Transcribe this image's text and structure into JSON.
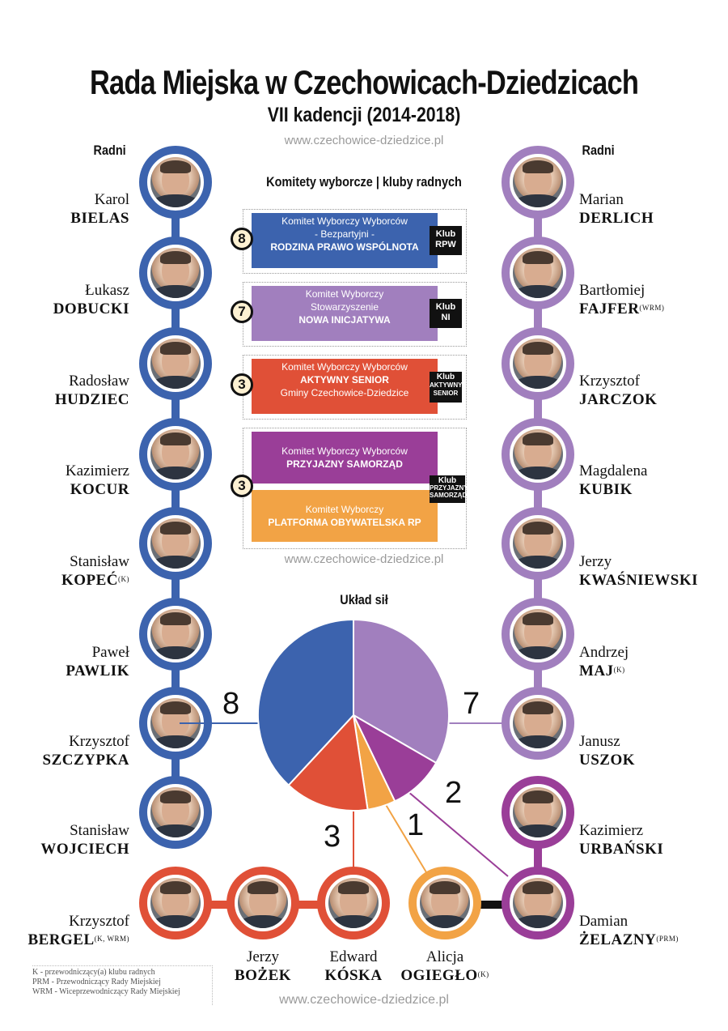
{
  "title": "Rada Miejska w Czechowicach-Dziedzicach",
  "subtitle": "VII kadencji (2014-2018)",
  "website": "www.czechowice-dziedzice.pl",
  "radni_label": "Radni",
  "committees_header": "Komitety wyborcze | kluby radnych",
  "uklad_header": "Układ sił",
  "committees": [
    {
      "count": "8",
      "line1": "Komitet Wyborczy Wyborców",
      "line2": "- Bezpartyjni -",
      "line3": "RODZINA PRAWO WSPÓLNOTA",
      "klub_line1": "Klub",
      "klub_line2": "RPW",
      "color": "#3c63ae"
    },
    {
      "count": "7",
      "line1": "Komitet Wyborczy",
      "line2": "Stowarzyszenie",
      "line3": "NOWA INICJATYWA",
      "klub_line1": "Klub",
      "klub_line2": "NI",
      "color": "#a17fbe"
    },
    {
      "count": "3",
      "line1": "Komitet Wyborczy Wyborców",
      "line2": "AKTYWNY SENIOR",
      "line3": "Gminy Czechowice-Dziedzice",
      "klub_line1": "Klub",
      "klub_line2": "AKTYWNY",
      "klub_line3": "SENIOR",
      "color": "#e05037"
    },
    {
      "count": "3",
      "line1": "Komitet Wyborczy Wyborców",
      "line2": "PRZYJAZNY SAMORZĄD",
      "line3": "Komitet Wyborczy",
      "line4": "PLATFORMA OBYWATELSKA RP",
      "klub_line1": "Klub",
      "klub_line2": "PRZYJAZNY",
      "klub_line3": "SAMORZĄD",
      "color": "#9a3e98",
      "color2": "#f2a345"
    }
  ],
  "left_members": [
    {
      "first": "Karol",
      "last": "BIELAS",
      "sup": ""
    },
    {
      "first": "Łukasz",
      "last": "DOBUCKI",
      "sup": ""
    },
    {
      "first": "Radosław",
      "last": "HUDZIEC",
      "sup": ""
    },
    {
      "first": "Kazimierz",
      "last": "KOCUR",
      "sup": ""
    },
    {
      "first": "Stanisław",
      "last": "KOPEĆ",
      "sup": "(K)"
    },
    {
      "first": "Paweł",
      "last": "PAWLIK",
      "sup": ""
    },
    {
      "first": "Krzysztof",
      "last": "SZCZYPKA",
      "sup": ""
    },
    {
      "first": "Stanisław",
      "last": "WOJCIECH",
      "sup": ""
    }
  ],
  "right_members": [
    {
      "first": "Marian",
      "last": "DERLICH",
      "sup": ""
    },
    {
      "first": "Bartłomiej",
      "last": "FAJFER",
      "sup": "(WRM)"
    },
    {
      "first": "Krzysztof",
      "last": "JARCZOK",
      "sup": ""
    },
    {
      "first": "Magdalena",
      "last": "KUBIK",
      "sup": ""
    },
    {
      "first": "Jerzy",
      "last": "KWAŚNIEWSKI",
      "sup": ""
    },
    {
      "first": "Andrzej",
      "last": "MAJ",
      "sup": "(K)"
    },
    {
      "first": "Janusz",
      "last": "USZOK",
      "sup": ""
    },
    {
      "first": "Kazimierz",
      "last": "URBAŃSKI",
      "sup": ""
    },
    {
      "first": "Damian",
      "last": "ŻELAZNY",
      "sup": "(PRM)"
    }
  ],
  "bottom_members": [
    {
      "first": "Krzysztof",
      "last": "BERGEL",
      "sup": "(K, WRM)"
    },
    {
      "first": "Jerzy",
      "last": "BOŻEK",
      "sup": ""
    },
    {
      "first": "Edward",
      "last": "KÓSKA",
      "sup": ""
    },
    {
      "first": "Alicja",
      "last": "OGIEGŁO",
      "sup": "(K)"
    }
  ],
  "uklad_numbers": {
    "blue": "8",
    "lavender": "7",
    "red": "3",
    "orange": "1",
    "purple": "2"
  },
  "chart_data": {
    "type": "pie",
    "values": [
      8,
      7,
      2,
      1,
      3
    ],
    "colors": [
      "#3c63ae",
      "#a17fbe",
      "#9a3e98",
      "#f2a345",
      "#e05037"
    ],
    "labels": [
      "8",
      "7",
      "2",
      "1",
      "3"
    ]
  },
  "legend_lines": [
    "K - przewodniczący(a) klubu radnych",
    "PRM - Przewodniczący Rady Miejskiej",
    "WRM - Wiceprzewodniczący Rady Miejskiej"
  ]
}
